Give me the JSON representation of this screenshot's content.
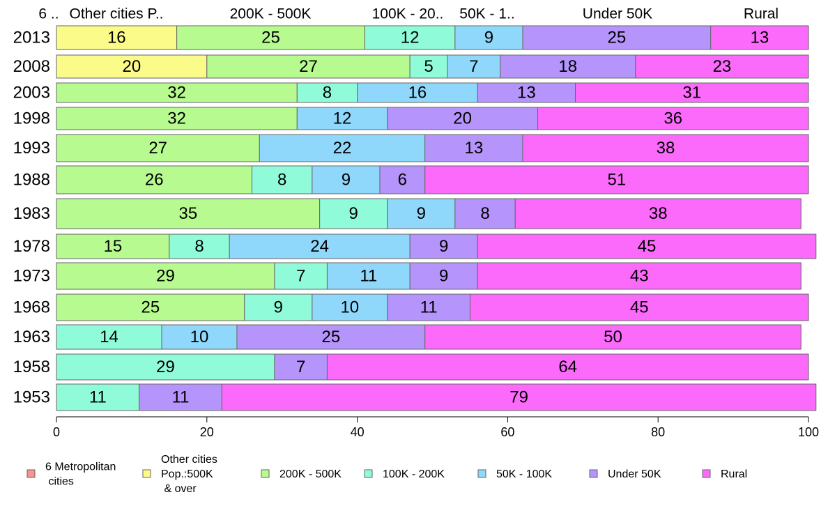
{
  "chart_data": {
    "type": "bar",
    "orientation": "horizontal",
    "stacked": true,
    "categories": [
      "2013",
      "2008",
      "2003",
      "1998",
      "1993",
      "1988",
      "1983",
      "1978",
      "1973",
      "1968",
      "1963",
      "1958",
      "1953"
    ],
    "series": [
      {
        "name": "6 Metropolitan cities",
        "legend_lines": [
          "6 Metropolitan",
          " cities"
        ],
        "header": "6 ..",
        "color": "#f7948f",
        "values": [
          0,
          0,
          0,
          0,
          0,
          0,
          0,
          0,
          0,
          0,
          0,
          0,
          0
        ]
      },
      {
        "name": "Other cities Pop.:500K & over",
        "legend_lines": [
          "Other cities",
          "Pop.:500K",
          " & over"
        ],
        "header": "Other cities P..",
        "color": "#fbfb8a",
        "values": [
          16,
          20,
          0,
          0,
          0,
          0,
          0,
          0,
          0,
          0,
          0,
          0,
          0
        ]
      },
      {
        "name": "200K - 500K",
        "legend_lines": [
          "200K - 500K"
        ],
        "header": "200K - 500K",
        "color": "#b7fb90",
        "values": [
          25,
          27,
          32,
          32,
          27,
          26,
          35,
          15,
          29,
          25,
          0,
          0,
          0
        ]
      },
      {
        "name": "100K - 200K",
        "legend_lines": [
          "100K - 200K"
        ],
        "header": "100K - 20..",
        "color": "#90fbd8",
        "values": [
          12,
          5,
          8,
          0,
          0,
          8,
          9,
          8,
          7,
          9,
          14,
          29,
          11
        ]
      },
      {
        "name": "50K - 100K",
        "legend_lines": [
          "50K - 100K"
        ],
        "header": "50K - 1..",
        "color": "#90d8fb",
        "values": [
          9,
          7,
          16,
          12,
          22,
          9,
          9,
          24,
          11,
          10,
          10,
          0,
          0
        ]
      },
      {
        "name": "Under 50K",
        "legend_lines": [
          "Under 50K"
        ],
        "header": "Under 50K",
        "color": "#b595fb",
        "values": [
          25,
          18,
          13,
          20,
          13,
          6,
          8,
          9,
          9,
          11,
          25,
          7,
          11
        ]
      },
      {
        "name": "Rural",
        "legend_lines": [
          "Rural"
        ],
        "header": "Rural",
        "color": "#fc6afc",
        "values": [
          13,
          23,
          31,
          36,
          38,
          51,
          38,
          45,
          43,
          45,
          50,
          64,
          79
        ]
      }
    ],
    "xlim": [
      0,
      100
    ],
    "xticks": [
      0,
      20,
      40,
      60,
      80,
      100
    ],
    "grid": false,
    "legend_position": "bottom",
    "column_headers_position": "top"
  }
}
